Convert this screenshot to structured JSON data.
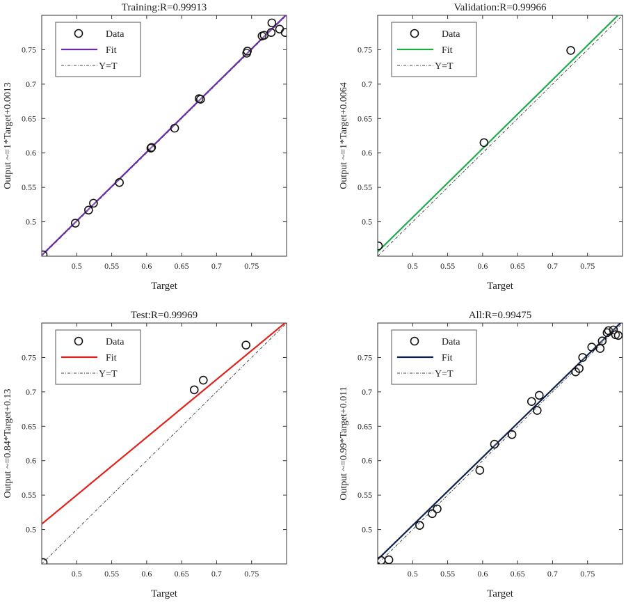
{
  "chart_data": [
    {
      "type": "scatter",
      "title": "Training:R=0.99913",
      "xlabel": "Target",
      "ylabel": "Output ~=1*Target+0.0013",
      "xlim": [
        0.45,
        0.8
      ],
      "ylim": [
        0.45,
        0.8
      ],
      "xticks": [
        0.5,
        0.55,
        0.6,
        0.65,
        0.7,
        0.75
      ],
      "yticks": [
        0.5,
        0.55,
        0.6,
        0.65,
        0.7,
        0.75
      ],
      "fit_color": "#6a2ca6",
      "fit": {
        "slope": 1.0,
        "intercept": 0.0013
      },
      "legend": {
        "position": "top-left",
        "entries": [
          "Data",
          "Fit",
          "Y=T"
        ]
      },
      "points": [
        [
          0.452,
          0.452
        ],
        [
          0.498,
          0.498
        ],
        [
          0.517,
          0.517
        ],
        [
          0.524,
          0.527
        ],
        [
          0.561,
          0.557
        ],
        [
          0.606,
          0.607
        ],
        [
          0.607,
          0.608
        ],
        [
          0.64,
          0.636
        ],
        [
          0.675,
          0.679
        ],
        [
          0.677,
          0.678
        ],
        [
          0.743,
          0.745
        ],
        [
          0.744,
          0.748
        ],
        [
          0.765,
          0.77
        ],
        [
          0.768,
          0.771
        ],
        [
          0.778,
          0.775
        ],
        [
          0.779,
          0.789
        ],
        [
          0.79,
          0.78
        ],
        [
          0.798,
          0.775
        ]
      ]
    },
    {
      "type": "scatter",
      "title": "Validation:R=0.99966",
      "xlabel": "Target",
      "ylabel": "Output ~=1*Target+0.0064",
      "xlim": [
        0.45,
        0.8
      ],
      "ylim": [
        0.45,
        0.8
      ],
      "xticks": [
        0.5,
        0.55,
        0.6,
        0.65,
        0.7,
        0.75
      ],
      "yticks": [
        0.5,
        0.55,
        0.6,
        0.65,
        0.7,
        0.75
      ],
      "fit_color": "#1faa4b",
      "fit": {
        "slope": 1.0,
        "intercept": 0.0064
      },
      "legend": {
        "position": "top-left",
        "entries": [
          "Data",
          "Fit",
          "Y=T"
        ]
      },
      "points": [
        [
          0.451,
          0.465
        ],
        [
          0.602,
          0.615
        ],
        [
          0.726,
          0.749
        ]
      ]
    },
    {
      "type": "scatter",
      "title": "Test:R=0.99969",
      "xlabel": "Target",
      "ylabel": "Output ~=0.84*Target+0.13",
      "xlim": [
        0.45,
        0.8
      ],
      "ylim": [
        0.45,
        0.8
      ],
      "xticks": [
        0.5,
        0.55,
        0.6,
        0.65,
        0.7,
        0.75
      ],
      "yticks": [
        0.5,
        0.55,
        0.6,
        0.65,
        0.7,
        0.75
      ],
      "fit_color": "#e0221b",
      "fit": {
        "slope": 0.84,
        "intercept": 0.13
      },
      "legend": {
        "position": "top-left",
        "entries": [
          "Data",
          "Fit",
          "Y=T"
        ]
      },
      "points": [
        [
          0.452,
          0.452
        ],
        [
          0.668,
          0.703
        ],
        [
          0.681,
          0.717
        ],
        [
          0.742,
          0.768
        ]
      ]
    },
    {
      "type": "scatter",
      "title": "All:R=0.99475",
      "xlabel": "Target",
      "ylabel": "Output ~=0.99*Target+0.011",
      "xlim": [
        0.45,
        0.8
      ],
      "ylim": [
        0.45,
        0.8
      ],
      "xticks": [
        0.5,
        0.55,
        0.6,
        0.65,
        0.7,
        0.75
      ],
      "yticks": [
        0.5,
        0.55,
        0.6,
        0.65,
        0.7,
        0.75
      ],
      "fit_color": "#102050",
      "fit": {
        "slope": 0.99,
        "intercept": 0.011
      },
      "legend": {
        "position": "top-left",
        "entries": [
          "Data",
          "Fit",
          "Y=T"
        ]
      },
      "points": [
        [
          0.455,
          0.455
        ],
        [
          0.466,
          0.456
        ],
        [
          0.51,
          0.506
        ],
        [
          0.528,
          0.523
        ],
        [
          0.535,
          0.53
        ],
        [
          0.596,
          0.586
        ],
        [
          0.617,
          0.624
        ],
        [
          0.642,
          0.638
        ],
        [
          0.67,
          0.686
        ],
        [
          0.678,
          0.673
        ],
        [
          0.681,
          0.695
        ],
        [
          0.733,
          0.729
        ],
        [
          0.738,
          0.734
        ],
        [
          0.743,
          0.75
        ],
        [
          0.756,
          0.765
        ],
        [
          0.768,
          0.763
        ],
        [
          0.771,
          0.774
        ],
        [
          0.778,
          0.786
        ],
        [
          0.78,
          0.789
        ],
        [
          0.787,
          0.79
        ],
        [
          0.79,
          0.783
        ],
        [
          0.794,
          0.782
        ]
      ]
    }
  ]
}
